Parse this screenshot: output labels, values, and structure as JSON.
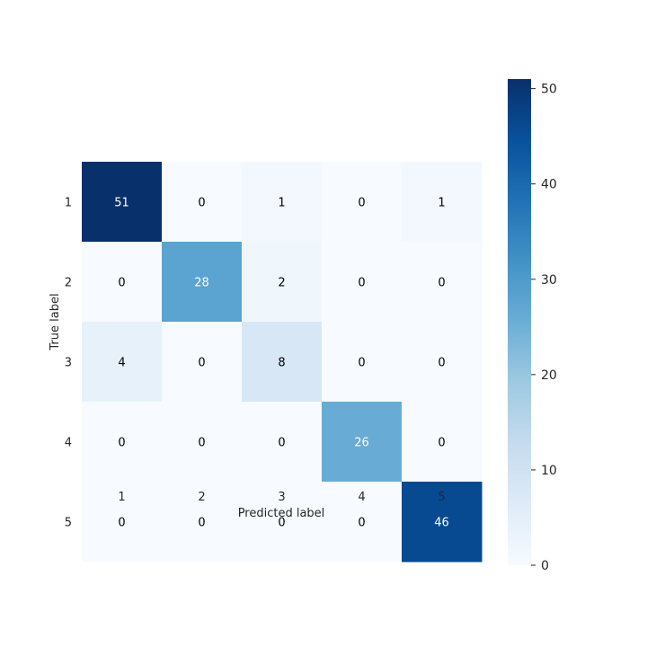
{
  "chart_data": {
    "type": "heatmap",
    "title": "",
    "xlabel": "Predicted label",
    "ylabel": "True label",
    "x_categories": [
      "1",
      "2",
      "3",
      "4",
      "5"
    ],
    "y_categories": [
      "1",
      "2",
      "3",
      "4",
      "5"
    ],
    "values": [
      [
        51,
        0,
        1,
        0,
        1
      ],
      [
        0,
        28,
        2,
        0,
        0
      ],
      [
        4,
        0,
        8,
        0,
        0
      ],
      [
        0,
        0,
        0,
        26,
        0
      ],
      [
        0,
        0,
        0,
        0,
        46
      ]
    ],
    "colormap": "Blues",
    "vmin": 0,
    "vmax": 51,
    "colorbar_ticks": [
      0,
      10,
      20,
      30,
      40,
      50
    ],
    "grid": false
  }
}
